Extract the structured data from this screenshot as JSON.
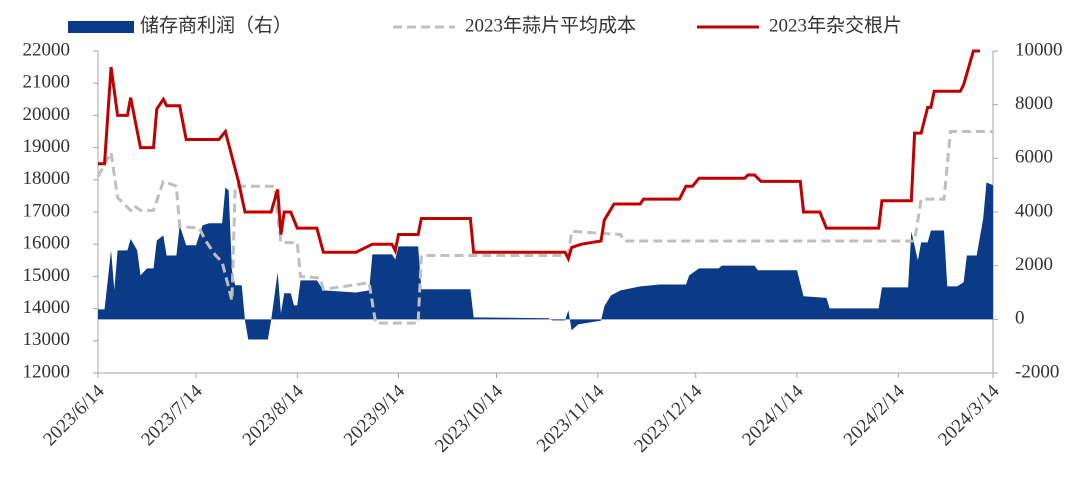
{
  "chart_data": {
    "type": "line",
    "xlim": [
      "2023/6/14",
      "2024/3/14"
    ],
    "xticks": [
      "2023/6/14",
      "2023/7/14",
      "2023/8/14",
      "2023/9/14",
      "2023/10/14",
      "2023/11/14",
      "2023/12/14",
      "2024/1/14",
      "2024/2/14",
      "2024/3/14"
    ],
    "ylim": [
      12000,
      22000
    ],
    "yticks": [
      12000,
      13000,
      14000,
      15000,
      16000,
      17000,
      18000,
      19000,
      20000,
      21000,
      22000
    ],
    "y2lim": [
      -2000,
      10000
    ],
    "y2ticks": [
      -2000,
      0,
      2000,
      4000,
      6000,
      8000,
      10000
    ],
    "series": [
      {
        "name": "储存商利润（右）",
        "color": "#0b3a86",
        "kind": "area",
        "axis": "y2",
        "x": [
          "2023/6/14",
          "2023/6/16",
          "2023/6/18",
          "2023/6/19",
          "2023/6/20",
          "2023/6/23",
          "2023/6/24",
          "2023/6/26",
          "2023/6/27",
          "2023/6/29",
          "2023/7/1",
          "2023/7/2",
          "2023/7/4",
          "2023/7/5",
          "2023/7/8",
          "2023/7/9",
          "2023/7/11",
          "2023/7/14",
          "2023/7/16",
          "2023/7/18",
          "2023/7/22",
          "2023/7/23",
          "2023/7/24",
          "2023/7/25",
          "2023/7/26",
          "2023/7/28",
          "2023/7/29",
          "2023/7/30",
          "2023/8/5",
          "2023/8/6",
          "2023/8/8",
          "2023/8/9",
          "2023/8/10",
          "2023/8/12",
          "2023/8/13",
          "2023/8/14",
          "2023/8/15",
          "2023/8/20",
          "2023/8/22",
          "2023/9/1",
          "2023/9/5",
          "2023/9/6",
          "2023/9/12",
          "2023/9/13",
          "2023/9/14",
          "2023/9/20",
          "2023/9/21",
          "2023/10/6",
          "2023/10/7",
          "2023/10/30",
          "2023/10/31",
          "2023/11/4",
          "2023/11/5",
          "2023/11/6",
          "2023/11/8",
          "2023/11/15",
          "2023/11/16",
          "2023/11/18",
          "2023/11/21",
          "2023/11/27",
          "2023/12/3",
          "2023/12/11",
          "2023/12/12",
          "2023/12/15",
          "2023/12/21",
          "2023/12/22",
          "2024/1/1",
          "2024/1/2",
          "2024/1/14",
          "2024/1/16",
          "2024/1/23",
          "2024/1/24",
          "2024/2/8",
          "2024/2/9",
          "2024/2/17",
          "2024/2/18",
          "2024/2/20",
          "2024/2/21",
          "2024/2/23",
          "2024/2/24",
          "2024/2/28",
          "2024/2/29",
          "2024/3/3",
          "2024/3/5",
          "2024/3/6",
          "2024/3/9",
          "2024/3/11",
          "2024/3/12",
          "2024/3/14"
        ],
        "values": [
          370,
          370,
          2570,
          1100,
          2570,
          2570,
          3000,
          2570,
          1640,
          1900,
          1900,
          2940,
          3130,
          2380,
          2380,
          3500,
          2760,
          2760,
          3500,
          3580,
          3580,
          4920,
          4800,
          1830,
          1270,
          1270,
          -40,
          -750,
          -750,
          -40,
          1750,
          220,
          970,
          970,
          520,
          520,
          1450,
          1450,
          1080,
          1000,
          1080,
          2420,
          2420,
          2230,
          2720,
          2720,
          1120,
          1120,
          75,
          40,
          -40,
          -40,
          335,
          -410,
          -190,
          -50,
          480,
          890,
          1080,
          1230,
          1300,
          1300,
          1640,
          1900,
          1900,
          2000,
          2000,
          1830,
          1830,
          860,
          800,
          410,
          410,
          1190,
          1190,
          3280,
          2200,
          2870,
          2870,
          3310,
          3310,
          1230,
          1230,
          1380,
          2380,
          2380,
          3760,
          5100,
          5000
        ]
      },
      {
        "name": "2023年蒜片平均成本",
        "color": "#bfbfbf",
        "kind": "dashed",
        "x": [
          "2023/6/14",
          "2023/6/18",
          "2023/6/20",
          "2023/6/24",
          "2023/6/25",
          "2023/6/27",
          "2023/7/1",
          "2023/7/4",
          "2023/7/8",
          "2023/7/9",
          "2023/7/15",
          "2023/7/17",
          "2023/7/20",
          "2023/7/22",
          "2023/7/25",
          "2023/7/26",
          "2023/8/7",
          "2023/8/9",
          "2023/8/14",
          "2023/8/15",
          "2023/8/21",
          "2023/8/22",
          "2023/9/5",
          "2023/9/7",
          "2023/9/20",
          "2023/9/21",
          "2023/11/5",
          "2023/11/6",
          "2023/11/21",
          "2023/11/22",
          "2024/2/19",
          "2024/2/21",
          "2024/2/28",
          "2024/3/1",
          "2024/3/14"
        ],
        "values": [
          18100,
          18850,
          17450,
          17050,
          17200,
          17050,
          17050,
          17950,
          17800,
          16550,
          16500,
          16100,
          15650,
          15450,
          14250,
          17800,
          17800,
          16050,
          16050,
          15000,
          14950,
          14600,
          14800,
          13550,
          13550,
          15650,
          15650,
          16400,
          16300,
          16100,
          16100,
          17400,
          17400,
          19500,
          19500
        ]
      },
      {
        "name": "2023年杂交根片",
        "color": "#c00000",
        "kind": "solid",
        "x": [
          "2023/6/14",
          "2023/6/16",
          "2023/6/18",
          "2023/6/20",
          "2023/6/23",
          "2023/6/24",
          "2023/6/27",
          "2023/7/1",
          "2023/7/2",
          "2023/7/4",
          "2023/7/5",
          "2023/7/9",
          "2023/7/11",
          "2023/7/21",
          "2023/7/23",
          "2023/7/27",
          "2023/7/29",
          "2023/8/6",
          "2023/8/8",
          "2023/8/9",
          "2023/8/10",
          "2023/8/12",
          "2023/8/14",
          "2023/8/20",
          "2023/8/22",
          "2023/9/1",
          "2023/9/2",
          "2023/9/6",
          "2023/9/12",
          "2023/9/13",
          "2023/9/14",
          "2023/9/20",
          "2023/9/21",
          "2023/10/6",
          "2023/10/7",
          "2023/11/4",
          "2023/11/5",
          "2023/11/6",
          "2023/11/9",
          "2023/11/15",
          "2023/11/16",
          "2023/11/19",
          "2023/11/27",
          "2023/11/28",
          "2023/12/9",
          "2023/12/11",
          "2023/12/13",
          "2023/12/15",
          "2023/12/29",
          "2023/12/30",
          "2024/1/1",
          "2024/1/3",
          "2024/1/15",
          "2024/1/16",
          "2024/1/21",
          "2024/1/23",
          "2024/2/8",
          "2024/2/9",
          "2024/2/18",
          "2024/2/19",
          "2024/2/21",
          "2024/2/23",
          "2024/2/24",
          "2024/2/25",
          "2024/3/4",
          "2024/3/5",
          "2024/3/8",
          "2024/3/10"
        ],
        "values": [
          18500,
          18500,
          21500,
          20000,
          20000,
          20550,
          19000,
          19000,
          20200,
          20500,
          20300,
          20300,
          19250,
          19250,
          19500,
          17950,
          17000,
          17000,
          17700,
          16300,
          17000,
          17000,
          16500,
          16500,
          15750,
          15750,
          15800,
          16000,
          16000,
          15800,
          16300,
          16300,
          16800,
          16800,
          15750,
          15750,
          15550,
          15900,
          16000,
          16100,
          16750,
          17250,
          17250,
          17400,
          17400,
          17800,
          17800,
          18050,
          18050,
          18150,
          18150,
          17950,
          17950,
          17000,
          17000,
          16500,
          16500,
          17350,
          17350,
          19450,
          19450,
          20250,
          20250,
          20750,
          20750,
          20950,
          22000,
          22000
        ]
      }
    ]
  }
}
